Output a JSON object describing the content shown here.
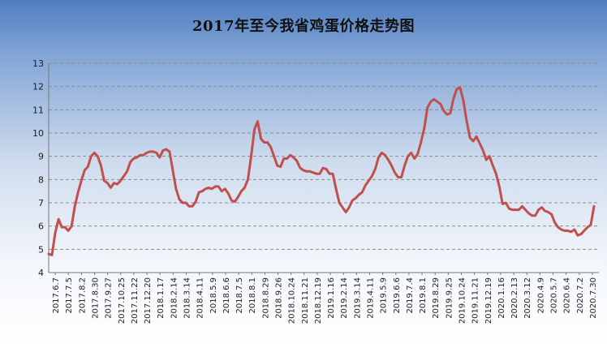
{
  "chart_data": {
    "type": "line",
    "title": "2017年至今我省鸡蛋价格走势图",
    "xlabel": "",
    "ylabel": "",
    "ylim": [
      4,
      13
    ],
    "yticks": [
      4,
      5,
      6,
      7,
      8,
      9,
      10,
      11,
      12,
      13
    ],
    "grid": "horizontal-dashed",
    "series_color": "#c0504d",
    "x_tick_labels": [
      "2017.6.7",
      "2017.7.5",
      "2017.8.2",
      "2017.8.30",
      "2017.9.27",
      "2017.10.25",
      "2017.11.22",
      "2017.12.20",
      "2018.1.17",
      "2018.2.14",
      "2018.3.14",
      "2018.4.11",
      "2018.5.9",
      "2018.6.6",
      "2018.7.5",
      "2018.8.1",
      "2018.8.29",
      "2018.9.26",
      "2018.10.24",
      "2018.11.21",
      "2018.12.19",
      "2019.1.16",
      "2019.2.14",
      "2019.3.14",
      "2019.4.11",
      "2019.5.9",
      "2019.6.6",
      "2019.7.4",
      "2019.8.1",
      "2019.8.29",
      "2019.9.25",
      "2019.10.24",
      "2019.11.21",
      "2019.12.19",
      "2020.1.16",
      "2020.2.13",
      "2020.3.12",
      "2020.4.9",
      "2020.5.7",
      "2020.6.4",
      "2020.7.2",
      "2020.7.30"
    ],
    "series": [
      {
        "values": [
          4.8,
          4.75,
          5.7,
          6.3,
          5.95,
          5.95,
          5.8,
          6.0,
          6.85,
          7.45,
          7.95,
          8.4,
          8.55,
          9.0,
          9.15,
          9.0,
          8.6,
          7.95,
          7.85,
          7.65,
          7.85,
          7.8,
          7.95,
          8.15,
          8.35,
          8.75,
          8.9,
          8.95,
          9.05,
          9.05,
          9.15,
          9.2,
          9.2,
          9.15,
          8.95,
          9.25,
          9.3,
          9.2,
          8.4,
          7.6,
          7.15,
          7.0,
          7.0,
          6.85,
          6.85,
          7.05,
          7.45,
          7.5,
          7.6,
          7.65,
          7.6,
          7.7,
          7.7,
          7.5,
          7.6,
          7.4,
          7.1,
          7.05,
          7.25,
          7.5,
          7.65,
          8.0,
          9.0,
          10.15,
          10.5,
          9.75,
          9.6,
          9.6,
          9.4,
          9.0,
          8.6,
          8.55,
          8.9,
          8.9,
          9.05,
          8.95,
          8.8,
          8.5,
          8.4,
          8.35,
          8.35,
          8.3,
          8.25,
          8.25,
          8.5,
          8.45,
          8.25,
          8.25,
          7.6,
          7.0,
          6.8,
          6.6,
          6.8,
          7.1,
          7.2,
          7.35,
          7.45,
          7.75,
          7.95,
          8.15,
          8.45,
          8.95,
          9.15,
          9.05,
          8.85,
          8.6,
          8.3,
          8.1,
          8.1,
          8.6,
          9.0,
          9.15,
          8.9,
          9.1,
          9.6,
          10.2,
          11.1,
          11.35,
          11.45,
          11.35,
          11.25,
          10.95,
          10.8,
          10.85,
          11.5,
          11.9,
          11.95,
          11.4,
          10.5,
          9.8,
          9.65,
          9.85,
          9.55,
          9.25,
          8.85,
          9.0,
          8.6,
          8.25,
          7.7,
          6.95,
          7.0,
          6.75,
          6.7,
          6.7,
          6.7,
          6.85,
          6.7,
          6.55,
          6.45,
          6.45,
          6.7,
          6.8,
          6.65,
          6.6,
          6.5,
          6.15,
          5.95,
          5.85,
          5.8,
          5.8,
          5.75,
          5.85,
          5.6,
          5.65,
          5.8,
          5.95,
          6.05,
          6.85
        ]
      }
    ]
  }
}
